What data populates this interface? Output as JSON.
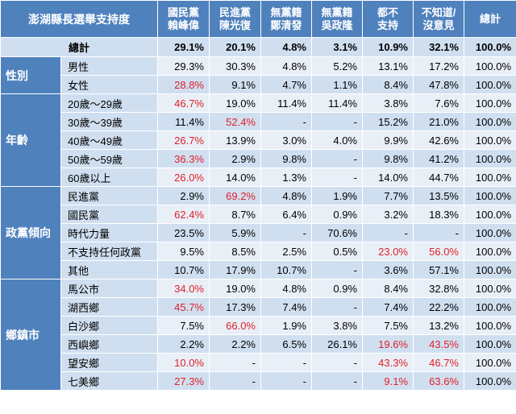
{
  "colors": {
    "header_bg": "#4f81bd",
    "row_dark": "#d0dff0",
    "row_light": "#e9eff7",
    "highlight_text": "#e0202a"
  },
  "table": {
    "title": "澎湖縣長選舉支持度",
    "columns": [
      "國民黨\n賴峰偉",
      "民進黨\n陳光復",
      "無黨籍\n鄭清發",
      "無黨籍\n吳政隆",
      "都不\n支持",
      "不知道/\n沒意見",
      "總計"
    ],
    "total": {
      "label": "總計",
      "values": [
        "29.1%",
        "20.1%",
        "4.8%",
        "3.1%",
        "10.9%",
        "32.1%",
        "100.0%"
      ]
    },
    "groups": [
      {
        "name": "性別",
        "rows": [
          {
            "label": "男性",
            "values": [
              "29.3%",
              "30.3%",
              "4.8%",
              "5.2%",
              "13.1%",
              "17.2%",
              "100.0%"
            ],
            "red": []
          },
          {
            "label": "女性",
            "values": [
              "28.8%",
              "9.1%",
              "4.7%",
              "1.1%",
              "8.4%",
              "47.8%",
              "100.0%"
            ],
            "red": [
              0
            ]
          }
        ]
      },
      {
        "name": "年齡",
        "rows": [
          {
            "label": "20歲～29歲",
            "values": [
              "46.7%",
              "19.0%",
              "11.4%",
              "11.4%",
              "3.8%",
              "7.6%",
              "100.0%"
            ],
            "red": [
              0
            ]
          },
          {
            "label": "30歲～39歲",
            "values": [
              "11.4%",
              "52.4%",
              "-",
              "-",
              "15.2%",
              "21.0%",
              "100.0%"
            ],
            "red": [
              1
            ]
          },
          {
            "label": "40歲～49歲",
            "values": [
              "26.7%",
              "13.9%",
              "3.0%",
              "4.0%",
              "9.9%",
              "42.6%",
              "100.0%"
            ],
            "red": [
              0
            ]
          },
          {
            "label": "50歲～59歲",
            "values": [
              "36.3%",
              "2.9%",
              "9.8%",
              "-",
              "9.8%",
              "41.2%",
              "100.0%"
            ],
            "red": [
              0
            ]
          },
          {
            "label": "60歲以上",
            "values": [
              "26.0%",
              "14.0%",
              "1.3%",
              "-",
              "14.0%",
              "44.7%",
              "100.0%"
            ],
            "red": [
              0
            ]
          }
        ]
      },
      {
        "name": "政黨傾向",
        "rows": [
          {
            "label": "民進黨",
            "values": [
              "2.9%",
              "69.2%",
              "4.8%",
              "1.9%",
              "7.7%",
              "13.5%",
              "100.0%"
            ],
            "red": [
              1
            ]
          },
          {
            "label": "國民黨",
            "values": [
              "62.4%",
              "8.7%",
              "6.4%",
              "0.9%",
              "3.2%",
              "18.3%",
              "100.0%"
            ],
            "red": [
              0
            ]
          },
          {
            "label": "時代力量",
            "values": [
              "23.5%",
              "5.9%",
              "-",
              "70.6%",
              "-",
              "-",
              "100.0%"
            ],
            "red": []
          },
          {
            "label": "不支持任何政黨",
            "values": [
              "9.5%",
              "8.5%",
              "2.5%",
              "0.5%",
              "23.0%",
              "56.0%",
              "100.0%"
            ],
            "red": [
              4,
              5
            ]
          },
          {
            "label": "其他",
            "values": [
              "10.7%",
              "17.9%",
              "10.7%",
              "-",
              "3.6%",
              "57.1%",
              "100.0%"
            ],
            "red": []
          }
        ]
      },
      {
        "name": "鄉鎮市",
        "rows": [
          {
            "label": "馬公市",
            "values": [
              "34.0%",
              "19.0%",
              "4.8%",
              "0.9%",
              "8.4%",
              "32.8%",
              "100.0%"
            ],
            "red": [
              0
            ]
          },
          {
            "label": "湖西鄉",
            "values": [
              "45.7%",
              "17.3%",
              "7.4%",
              "-",
              "7.4%",
              "22.2%",
              "100.0%"
            ],
            "red": [
              0
            ]
          },
          {
            "label": "白沙鄉",
            "values": [
              "7.5%",
              "66.0%",
              "1.9%",
              "3.8%",
              "7.5%",
              "13.2%",
              "100.0%"
            ],
            "red": [
              1
            ]
          },
          {
            "label": "西嶼鄉",
            "values": [
              "2.2%",
              "2.2%",
              "6.5%",
              "26.1%",
              "19.6%",
              "43.5%",
              "100.0%"
            ],
            "red": [
              4,
              5
            ]
          },
          {
            "label": "望安鄉",
            "values": [
              "10.0%",
              "-",
              "-",
              "-",
              "43.3%",
              "46.7%",
              "100.0%"
            ],
            "red": [
              0,
              4,
              5
            ]
          },
          {
            "label": "七美鄉",
            "values": [
              "27.3%",
              "-",
              "-",
              "-",
              "9.1%",
              "63.6%",
              "100.0%"
            ],
            "red": [
              0,
              4,
              5
            ]
          }
        ]
      }
    ]
  },
  "chart_data": {
    "type": "table",
    "title": "澎湖縣長選舉支持度",
    "columns": [
      "國民黨 賴峰偉",
      "民進黨 陳光復",
      "無黨籍 鄭清發",
      "無黨籍 吳政隆",
      "都不 支持",
      "不知道/ 沒意見",
      "總計"
    ],
    "rows": [
      {
        "group": "",
        "label": "總計",
        "values": [
          29.1,
          20.1,
          4.8,
          3.1,
          10.9,
          32.1,
          100.0
        ]
      },
      {
        "group": "性別",
        "label": "男性",
        "values": [
          29.3,
          30.3,
          4.8,
          5.2,
          13.1,
          17.2,
          100.0
        ]
      },
      {
        "group": "性別",
        "label": "女性",
        "values": [
          28.8,
          9.1,
          4.7,
          1.1,
          8.4,
          47.8,
          100.0
        ]
      },
      {
        "group": "年齡",
        "label": "20歲～29歲",
        "values": [
          46.7,
          19.0,
          11.4,
          11.4,
          3.8,
          7.6,
          100.0
        ]
      },
      {
        "group": "年齡",
        "label": "30歲～39歲",
        "values": [
          11.4,
          52.4,
          null,
          null,
          15.2,
          21.0,
          100.0
        ]
      },
      {
        "group": "年齡",
        "label": "40歲～49歲",
        "values": [
          26.7,
          13.9,
          3.0,
          4.0,
          9.9,
          42.6,
          100.0
        ]
      },
      {
        "group": "年齡",
        "label": "50歲～59歲",
        "values": [
          36.3,
          2.9,
          9.8,
          null,
          9.8,
          41.2,
          100.0
        ]
      },
      {
        "group": "年齡",
        "label": "60歲以上",
        "values": [
          26.0,
          14.0,
          1.3,
          null,
          14.0,
          44.7,
          100.0
        ]
      },
      {
        "group": "政黨傾向",
        "label": "民進黨",
        "values": [
          2.9,
          69.2,
          4.8,
          1.9,
          7.7,
          13.5,
          100.0
        ]
      },
      {
        "group": "政黨傾向",
        "label": "國民黨",
        "values": [
          62.4,
          8.7,
          6.4,
          0.9,
          3.2,
          18.3,
          100.0
        ]
      },
      {
        "group": "政黨傾向",
        "label": "時代力量",
        "values": [
          23.5,
          5.9,
          null,
          70.6,
          null,
          null,
          100.0
        ]
      },
      {
        "group": "政黨傾向",
        "label": "不支持任何政黨",
        "values": [
          9.5,
          8.5,
          2.5,
          0.5,
          23.0,
          56.0,
          100.0
        ]
      },
      {
        "group": "政黨傾向",
        "label": "其他",
        "values": [
          10.7,
          17.9,
          10.7,
          null,
          3.6,
          57.1,
          100.0
        ]
      },
      {
        "group": "鄉鎮市",
        "label": "馬公市",
        "values": [
          34.0,
          19.0,
          4.8,
          0.9,
          8.4,
          32.8,
          100.0
        ]
      },
      {
        "group": "鄉鎮市",
        "label": "湖西鄉",
        "values": [
          45.7,
          17.3,
          7.4,
          null,
          7.4,
          22.2,
          100.0
        ]
      },
      {
        "group": "鄉鎮市",
        "label": "白沙鄉",
        "values": [
          7.5,
          66.0,
          1.9,
          3.8,
          7.5,
          13.2,
          100.0
        ]
      },
      {
        "group": "鄉鎮市",
        "label": "西嶼鄉",
        "values": [
          2.2,
          2.2,
          6.5,
          26.1,
          19.6,
          43.5,
          100.0
        ]
      },
      {
        "group": "鄉鎮市",
        "label": "望安鄉",
        "values": [
          10.0,
          null,
          null,
          null,
          43.3,
          46.7,
          100.0
        ]
      },
      {
        "group": "鄉鎮市",
        "label": "七美鄉",
        "values": [
          27.3,
          null,
          null,
          null,
          9.1,
          63.6,
          100.0
        ]
      }
    ]
  }
}
